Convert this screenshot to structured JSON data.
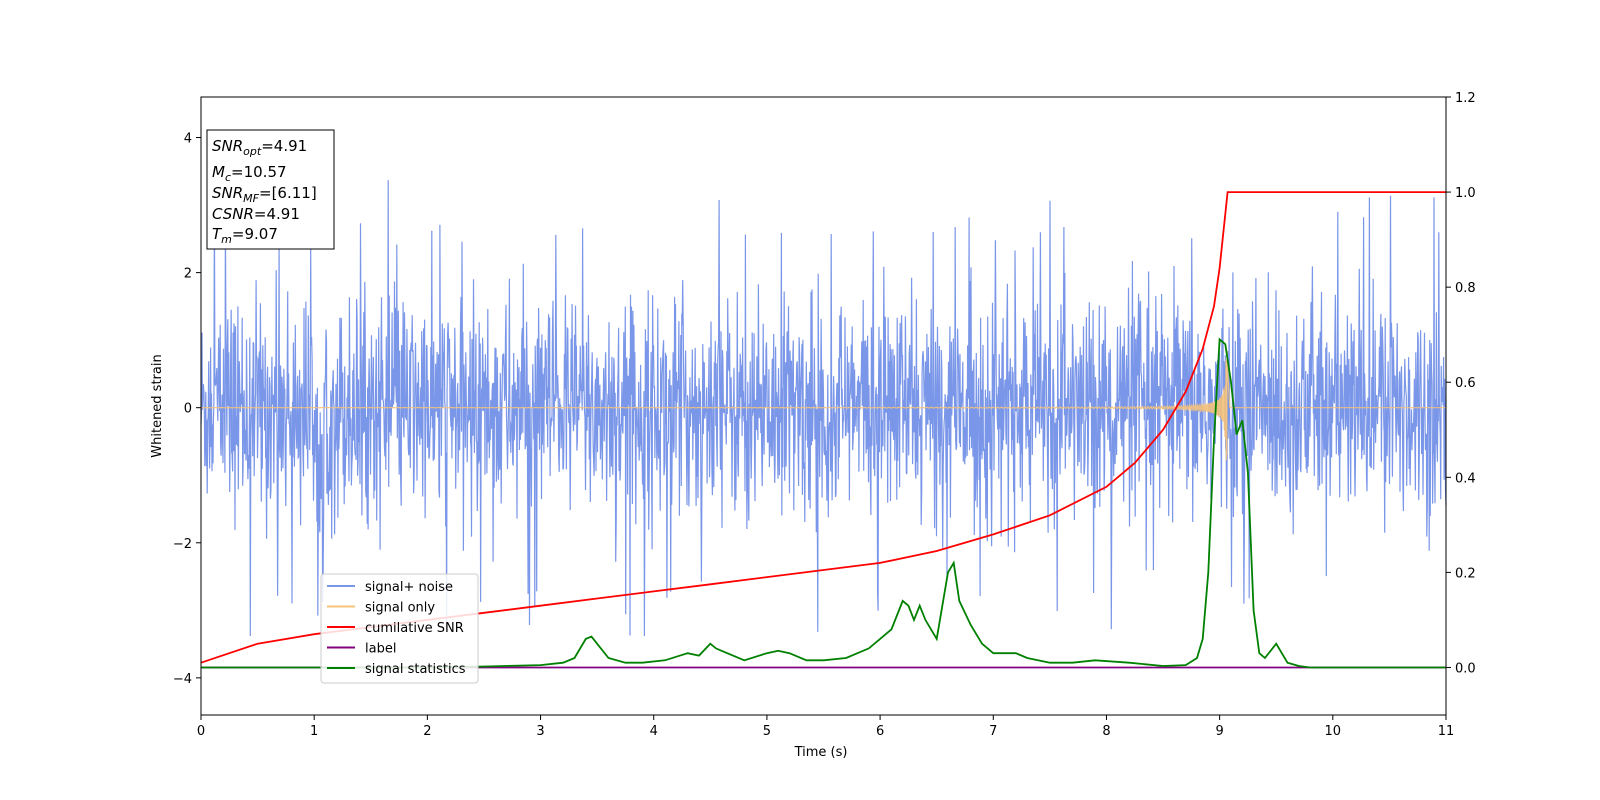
{
  "chart_data": {
    "type": "line",
    "title": "",
    "xlabel": "Time (s)",
    "ylabel": "Whitened strain",
    "xlim": [
      0,
      11
    ],
    "ylim": [
      -4.55,
      4.6
    ],
    "y2lim": [
      -0.1,
      1.2
    ],
    "x_ticks": [
      0,
      1,
      2,
      3,
      4,
      5,
      6,
      7,
      8,
      9,
      10,
      11
    ],
    "y_ticks": [
      -4,
      -2,
      0,
      2,
      4
    ],
    "y2_ticks": [
      0.0,
      0.2,
      0.4,
      0.6,
      0.8,
      1.0,
      1.2
    ],
    "x_tick_labels": [
      "0",
      "1",
      "2",
      "3",
      "4",
      "5",
      "6",
      "7",
      "8",
      "9",
      "10",
      "11"
    ],
    "y_tick_labels": [
      "−4",
      "−2",
      "0",
      "2",
      "4"
    ],
    "y2_tick_labels": [
      "0.0",
      "0.2",
      "0.4",
      "0.6",
      "0.8",
      "1.0",
      "1.2"
    ],
    "grid": false,
    "legend_position": "lower-left",
    "annotation": {
      "lines": [
        {
          "sym": "SNR",
          "sub": "opt",
          "value": "=4.91"
        },
        {
          "sym": "M",
          "sub": "c",
          "value": "=10.57"
        },
        {
          "sym": "SNR",
          "sub": "MF",
          "value": "=[6.11]"
        },
        {
          "sym": "CSNR",
          "sub": "",
          "value": "=4.91"
        },
        {
          "sym": "T",
          "sub": "m",
          "value": "=9.07"
        }
      ]
    },
    "series": [
      {
        "name": "signal+ noise",
        "color": "#7a96e8",
        "axis": "left",
        "kind": "noise",
        "description_values": {
          "envelope_low": -2.2,
          "envelope_high": 2.2,
          "spike_max": 4.15,
          "spike_min": -4.1
        }
      },
      {
        "name": "signal only",
        "color": "#f5c27a",
        "axis": "left",
        "kind": "chirp",
        "merger_time": 9.07,
        "peak_amplitude": 0.85
      },
      {
        "name": "cumilative SNR",
        "color": "#ff0000",
        "axis": "right",
        "x": [
          0,
          0.5,
          1,
          1.5,
          2,
          2.5,
          3,
          3.5,
          4,
          4.5,
          5,
          5.5,
          6,
          6.5,
          7,
          7.5,
          8,
          8.25,
          8.5,
          8.7,
          8.85,
          8.95,
          9.0,
          9.07,
          10,
          11
        ],
        "y": [
          0.01,
          0.05,
          0.07,
          0.085,
          0.1,
          0.115,
          0.13,
          0.145,
          0.16,
          0.175,
          0.19,
          0.205,
          0.22,
          0.245,
          0.28,
          0.32,
          0.38,
          0.43,
          0.5,
          0.58,
          0.67,
          0.76,
          0.84,
          1.0,
          1.0,
          1.0
        ]
      },
      {
        "name": "label",
        "color": "#800080",
        "axis": "right",
        "x": [
          0,
          11
        ],
        "y": [
          0.0,
          0.0
        ]
      },
      {
        "name": "signal statistics",
        "color": "#008000",
        "axis": "right",
        "x": [
          0,
          1,
          2,
          2.5,
          3,
          3.2,
          3.3,
          3.4,
          3.45,
          3.5,
          3.6,
          3.75,
          3.9,
          4.1,
          4.3,
          4.4,
          4.5,
          4.55,
          4.6,
          4.8,
          5.0,
          5.1,
          5.2,
          5.35,
          5.5,
          5.7,
          5.9,
          6.0,
          6.1,
          6.2,
          6.25,
          6.3,
          6.35,
          6.4,
          6.5,
          6.6,
          6.65,
          6.7,
          6.8,
          6.9,
          7.0,
          7.2,
          7.3,
          7.5,
          7.7,
          7.9,
          8.2,
          8.5,
          8.7,
          8.8,
          8.85,
          8.9,
          8.95,
          9.0,
          9.05,
          9.1,
          9.15,
          9.2,
          9.25,
          9.3,
          9.35,
          9.4,
          9.5,
          9.6,
          9.7,
          9.8,
          10,
          11
        ],
        "y": [
          0.0,
          0.0,
          0.0,
          0.002,
          0.005,
          0.01,
          0.02,
          0.06,
          0.065,
          0.05,
          0.02,
          0.01,
          0.01,
          0.015,
          0.03,
          0.025,
          0.05,
          0.04,
          0.035,
          0.015,
          0.03,
          0.035,
          0.03,
          0.015,
          0.015,
          0.02,
          0.04,
          0.06,
          0.08,
          0.14,
          0.13,
          0.1,
          0.13,
          0.1,
          0.06,
          0.2,
          0.22,
          0.14,
          0.09,
          0.05,
          0.03,
          0.03,
          0.02,
          0.01,
          0.01,
          0.015,
          0.01,
          0.003,
          0.005,
          0.02,
          0.06,
          0.2,
          0.48,
          0.69,
          0.68,
          0.6,
          0.49,
          0.52,
          0.41,
          0.12,
          0.03,
          0.02,
          0.05,
          0.01,
          0.003,
          0.0,
          0.0,
          0.0
        ]
      }
    ]
  }
}
